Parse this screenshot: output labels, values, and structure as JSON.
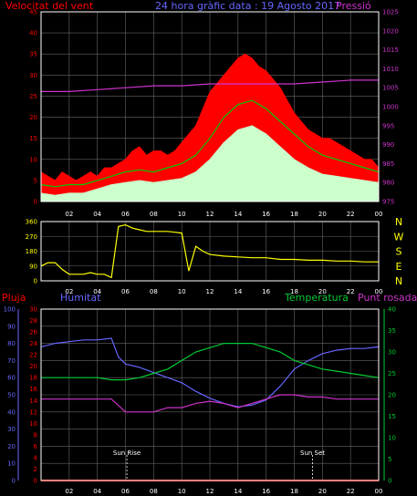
{
  "colors": {
    "bg": "#000000",
    "frame": "#ffffff",
    "grid": "#666666",
    "wind_avg": "#ffffff",
    "gust": "#ff0000",
    "wind_smooth": "#00cc00",
    "pressure": "#cc33cc",
    "direction": "#ffff00",
    "rain": "#ff0000",
    "humidity": "#6666ff",
    "temperature": "#00cc33",
    "dewpoint": "#cc33cc",
    "sun": "#ffffff",
    "light_fill": "#ccffcc"
  },
  "chart_data": [
    {
      "type": "line",
      "panel": "wind-pressure",
      "title": "24 hora gràfic data : 19 Agosto 2017",
      "left_label": "Velocitat del vent",
      "right_label": "Pressió",
      "x_ticks": [
        "02",
        "04",
        "06",
        "08",
        "10",
        "12",
        "14",
        "16",
        "18",
        "20",
        "22",
        "00"
      ],
      "y_left_ticks": [
        "0",
        "5",
        "10",
        "15",
        "20",
        "25",
        "30",
        "35",
        "40",
        "45"
      ],
      "y_left_range": [
        0,
        45
      ],
      "y_right_ticks": [
        "975",
        "980",
        "985",
        "990",
        "995",
        "1000",
        "1005",
        "1010",
        "1015",
        "1020",
        "1025"
      ],
      "y_right_range": [
        975,
        1025
      ],
      "x_range": [
        1,
        25
      ],
      "series": [
        {
          "key": "gust",
          "x": [
            1,
            1.5,
            2,
            2.5,
            3,
            3.5,
            4,
            4.5,
            5,
            5.5,
            6,
            6.5,
            7,
            7.5,
            8,
            8.5,
            9,
            9.5,
            10,
            10.5,
            11,
            11.5,
            12,
            12.5,
            13,
            13.5,
            14,
            14.5,
            15,
            15.5,
            16,
            16.5,
            17,
            17.5,
            18,
            18.5,
            19,
            19.5,
            20,
            20.5,
            21,
            21.5,
            22,
            22.5,
            23,
            23.5,
            24,
            24.5,
            25
          ],
          "values": [
            7,
            6,
            5,
            7,
            6,
            5,
            6,
            7,
            6,
            8,
            8,
            9,
            10,
            12,
            13,
            11,
            12,
            12,
            11,
            12,
            14,
            16,
            18,
            22,
            26,
            28,
            30,
            32,
            34,
            35,
            34,
            32,
            31,
            29,
            27,
            24,
            21,
            19,
            17,
            16,
            15,
            15,
            14,
            13,
            12,
            11,
            10,
            10,
            8
          ]
        },
        {
          "key": "wind_smooth",
          "x": [
            1,
            2,
            3,
            4,
            5,
            6,
            7,
            8,
            9,
            10,
            11,
            12,
            13,
            14,
            15,
            16,
            17,
            18,
            19,
            20,
            21,
            22,
            23,
            24,
            25
          ],
          "values": [
            4,
            3.5,
            4,
            4,
            5,
            6,
            7,
            7.5,
            7,
            8,
            9,
            11,
            15,
            20,
            23,
            24,
            22,
            19,
            16,
            13,
            11,
            10,
            9,
            8,
            7
          ]
        },
        {
          "key": "wind_avg",
          "x": [
            1,
            2,
            3,
            4,
            5,
            6,
            7,
            8,
            9,
            10,
            11,
            12,
            13,
            14,
            15,
            16,
            17,
            18,
            19,
            20,
            21,
            22,
            23,
            24,
            25
          ],
          "values": [
            2,
            1.5,
            2,
            2,
            3,
            4,
            4.5,
            5,
            4.5,
            5,
            5.5,
            7,
            10,
            14,
            17,
            18,
            16,
            13,
            10,
            8,
            6.5,
            6,
            5.5,
            5,
            4.5
          ]
        },
        {
          "key": "pressure",
          "x": [
            1,
            3,
            5,
            7,
            9,
            11,
            13,
            15,
            17,
            19,
            21,
            23,
            25
          ],
          "values": [
            1004,
            1004,
            1004.5,
            1005,
            1005.5,
            1005.5,
            1006,
            1006,
            1006,
            1006,
            1006.5,
            1007,
            1007
          ]
        }
      ]
    },
    {
      "type": "line",
      "panel": "direction",
      "x_ticks": [
        "02",
        "04",
        "06",
        "08",
        "10",
        "12",
        "14",
        "16",
        "18",
        "20",
        "22",
        "00"
      ],
      "y_ticks": [
        "0",
        "90",
        "180",
        "270",
        "360"
      ],
      "y_range": [
        0,
        360
      ],
      "right_labels": [
        "N",
        "W",
        "S",
        "E",
        "N"
      ],
      "x_range": [
        1,
        25
      ],
      "series": [
        {
          "key": "direction",
          "x": [
            1,
            1.5,
            2,
            2.5,
            3,
            3.5,
            4,
            4.5,
            5,
            5.5,
            6,
            6.5,
            7,
            7.5,
            8,
            8.5,
            9,
            9.5,
            10,
            10.5,
            11,
            11.5,
            12,
            12.5,
            13,
            14,
            15,
            16,
            17,
            18,
            19,
            20,
            21,
            22,
            23,
            24,
            25
          ],
          "values": [
            90,
            110,
            110,
            70,
            40,
            40,
            40,
            50,
            40,
            40,
            20,
            330,
            340,
            320,
            310,
            300,
            300,
            300,
            300,
            295,
            290,
            60,
            210,
            180,
            160,
            150,
            145,
            140,
            140,
            130,
            130,
            125,
            125,
            120,
            120,
            115,
            115
          ]
        }
      ]
    },
    {
      "type": "line",
      "panel": "rain-humidity-temperature",
      "labels": {
        "rain": "Pluja",
        "humidity": "Humitat",
        "temperature": "Temperatura",
        "dewpoint": "Punt rosada",
        "sunrise": "Sun Rise",
        "sunset": "Sun Set"
      },
      "x_ticks": [
        "02",
        "04",
        "06",
        "08",
        "10",
        "12",
        "14",
        "16",
        "18",
        "20",
        "22",
        "00"
      ],
      "y_humidity_ticks": [
        "0",
        "10",
        "20",
        "30",
        "40",
        "50",
        "60",
        "70",
        "80",
        "90",
        "100"
      ],
      "y_humidity_range": [
        0,
        100
      ],
      "y_rain_ticks": [
        "0",
        "2",
        "4",
        "6",
        "8",
        "10",
        "12",
        "14",
        "16",
        "18",
        "20",
        "22",
        "24",
        "26",
        "28",
        "30"
      ],
      "y_rain_range": [
        0,
        30
      ],
      "y_temp_ticks": [
        "0",
        "5",
        "10",
        "15",
        "20",
        "25",
        "30",
        "35",
        "40"
      ],
      "y_temp_range": [
        0,
        40
      ],
      "x_range": [
        1,
        25
      ],
      "sunrise_x": 7.1,
      "sunset_x": 20.3,
      "series": [
        {
          "key": "humidity",
          "x": [
            1,
            2,
            3,
            4,
            5,
            6,
            6.5,
            7,
            8,
            9,
            10,
            11,
            12,
            13,
            14,
            15,
            16,
            17,
            18,
            19,
            20,
            21,
            22,
            23,
            24,
            25
          ],
          "values": [
            78,
            80,
            81,
            82,
            82,
            83,
            72,
            68,
            66,
            63,
            60,
            57,
            52,
            48,
            45,
            43,
            44,
            47,
            55,
            65,
            70,
            74,
            76,
            77,
            77,
            78
          ]
        },
        {
          "key": "temperature",
          "x": [
            1,
            2,
            3,
            4,
            5,
            6,
            7,
            8,
            9,
            10,
            11,
            12,
            13,
            14,
            15,
            16,
            17,
            18,
            19,
            20,
            21,
            22,
            23,
            24,
            25
          ],
          "values": [
            24,
            24,
            24,
            24,
            24,
            23.5,
            23.5,
            24,
            25,
            26,
            28,
            30,
            31,
            32,
            32,
            32,
            31,
            30,
            28,
            27,
            26,
            25.5,
            25,
            24.5,
            24
          ]
        },
        {
          "key": "dewpoint",
          "x": [
            1,
            2,
            3,
            4,
            5,
            6,
            7,
            8,
            9,
            10,
            11,
            12,
            13,
            14,
            15,
            16,
            17,
            18,
            19,
            20,
            21,
            22,
            23,
            24,
            25
          ],
          "values": [
            19,
            19,
            19,
            19,
            19,
            19,
            16,
            16,
            16,
            17,
            17,
            18,
            18.5,
            18,
            17,
            18,
            19,
            20,
            20,
            19.5,
            19.5,
            19,
            19,
            19,
            19
          ]
        },
        {
          "key": "rain",
          "x": [
            1,
            25
          ],
          "values": [
            0,
            0
          ]
        }
      ]
    }
  ]
}
